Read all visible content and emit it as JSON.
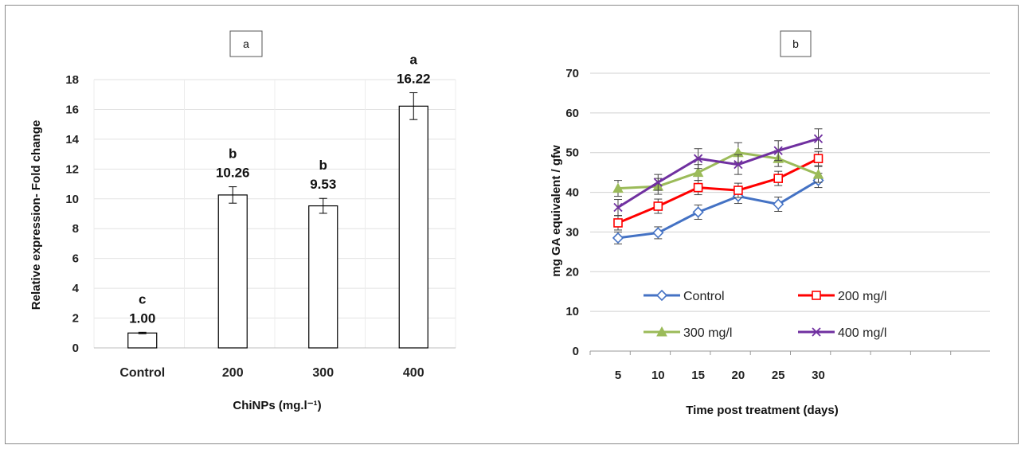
{
  "chart_data": [
    {
      "type": "bar",
      "panel_label": "a",
      "categories": [
        "Control",
        "200",
        "300",
        "400"
      ],
      "values": [
        1.0,
        10.26,
        9.53,
        16.22
      ],
      "errors": [
        0.05,
        0.55,
        0.5,
        0.9
      ],
      "value_labels": [
        "1.00",
        "10.26",
        "9.53",
        "16.22"
      ],
      "significance": [
        "c",
        "b",
        "b",
        "a"
      ],
      "ylabel": "Relative expression- Fold change",
      "xlabel": "ChiNPs (mg.l⁻¹)",
      "ylim": [
        0,
        18
      ],
      "yticks": [
        0,
        2,
        4,
        6,
        8,
        10,
        12,
        14,
        16,
        18
      ],
      "grid": true
    },
    {
      "type": "line",
      "panel_label": "b",
      "x": [
        5,
        10,
        15,
        20,
        25,
        30
      ],
      "series": [
        {
          "name": "Control",
          "values": [
            28.5,
            29.8,
            35.0,
            39.0,
            37.0,
            43.0
          ],
          "errors": [
            1.5,
            1.5,
            1.8,
            1.8,
            1.8,
            1.8
          ],
          "color": "#4472c4",
          "marker": "diamond"
        },
        {
          "name": "200 mg/l",
          "values": [
            32.3,
            36.5,
            41.2,
            40.5,
            43.5,
            48.5
          ],
          "errors": [
            1.8,
            1.8,
            1.8,
            1.8,
            1.8,
            1.8
          ],
          "color": "#ff0000",
          "marker": "square"
        },
        {
          "name": "300 mg/l",
          "values": [
            41.0,
            41.5,
            45.0,
            50.0,
            48.5,
            44.5
          ],
          "errors": [
            2.0,
            2.0,
            2.0,
            2.5,
            2.0,
            2.0
          ],
          "color": "#9bbb59",
          "marker": "triangle"
        },
        {
          "name": "400 mg/l",
          "values": [
            36.2,
            42.5,
            48.5,
            47.0,
            50.5,
            53.5
          ],
          "errors": [
            2.0,
            2.0,
            2.5,
            2.5,
            2.5,
            2.5
          ],
          "color": "#7030a0",
          "marker": "x"
        }
      ],
      "ylabel": "mg GA equivalent / gfw",
      "xlabel": "Time post treatment (days)",
      "ylim": [
        0,
        70
      ],
      "yticks": [
        0,
        10,
        20,
        30,
        40,
        50,
        60,
        70
      ],
      "grid": true,
      "legend_position": "lower-center"
    }
  ]
}
